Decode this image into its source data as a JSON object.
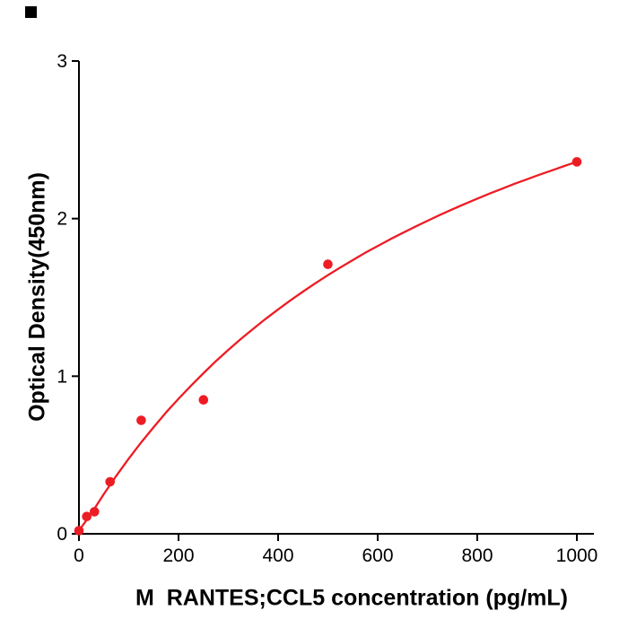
{
  "figure": {
    "background": "#ffffff"
  },
  "corner_marker": {
    "color": "#000000"
  },
  "chart_data": {
    "type": "scatter",
    "title": "",
    "xlabel": "M  RANTES;CCL5 concentration (pg/mL)",
    "ylabel": "Optical Density(450nm)",
    "xlim": [
      0,
      1000
    ],
    "ylim": [
      0,
      3
    ],
    "x_ticks": [
      0,
      200,
      400,
      600,
      800,
      1000
    ],
    "y_ticks": [
      0,
      1,
      2,
      3
    ],
    "grid": false,
    "legend": null,
    "axis_color": "#000000",
    "point_color": "#ed1c24",
    "line_color": "#ed1c24",
    "points": [
      {
        "x": 0,
        "y": 0.02
      },
      {
        "x": 15.6,
        "y": 0.11
      },
      {
        "x": 31.2,
        "y": 0.14
      },
      {
        "x": 62.5,
        "y": 0.33
      },
      {
        "x": 125,
        "y": 0.72
      },
      {
        "x": 250,
        "y": 0.85
      },
      {
        "x": 500,
        "y": 1.71
      },
      {
        "x": 1000,
        "y": 2.36
      }
    ],
    "fit_curve": {
      "x": [
        0,
        25,
        50,
        75,
        100,
        125,
        150,
        175,
        200,
        225,
        250,
        275,
        300,
        325,
        350,
        375,
        400,
        425,
        450,
        475,
        500,
        525,
        550,
        575,
        600,
        625,
        650,
        675,
        700,
        725,
        750,
        775,
        800,
        825,
        850,
        875,
        900,
        925,
        950,
        975,
        1000
      ],
      "y": [
        0.02,
        0.13,
        0.253,
        0.368,
        0.477,
        0.58,
        0.677,
        0.77,
        0.857,
        0.94,
        1.019,
        1.095,
        1.167,
        1.236,
        1.301,
        1.364,
        1.424,
        1.482,
        1.537,
        1.59,
        1.641,
        1.69,
        1.737,
        1.783,
        1.826,
        1.869,
        1.909,
        1.948,
        1.986,
        2.023,
        2.059,
        2.093,
        2.127,
        2.159,
        2.19,
        2.221,
        2.25,
        2.279,
        2.306,
        2.334,
        2.36
      ]
    }
  }
}
